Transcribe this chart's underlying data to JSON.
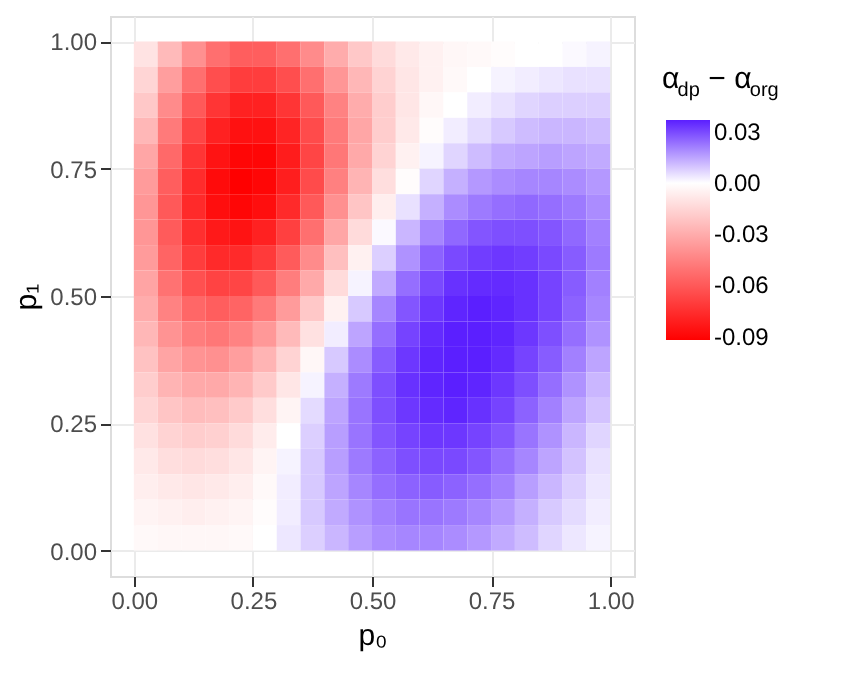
{
  "chart_data": {
    "type": "heatmap",
    "xlabel": "p₀",
    "ylabel": "p₁",
    "legend_title": "α$_{dp}$ − α$_{org}$",
    "x": [
      0.025,
      0.075,
      0.125,
      0.175,
      0.225,
      0.275,
      0.325,
      0.375,
      0.425,
      0.475,
      0.525,
      0.575,
      0.625,
      0.675,
      0.725,
      0.775,
      0.825,
      0.875,
      0.925,
      0.975
    ],
    "y": [
      0.975,
      0.925,
      0.875,
      0.825,
      0.775,
      0.725,
      0.675,
      0.625,
      0.575,
      0.525,
      0.475,
      0.425,
      0.375,
      0.325,
      0.275,
      0.225,
      0.175,
      0.125,
      0.075,
      0.025
    ],
    "cells": [
      [
        -0.01,
        -0.025,
        -0.04,
        -0.052,
        -0.058,
        -0.058,
        -0.052,
        -0.042,
        -0.03,
        -0.02,
        -0.013,
        -0.008,
        -0.005,
        -0.003,
        -0.002,
        -0.001,
        0.0,
        0.0,
        0.001,
        0.002
      ],
      [
        -0.015,
        -0.035,
        -0.052,
        -0.064,
        -0.07,
        -0.07,
        -0.064,
        -0.052,
        -0.038,
        -0.026,
        -0.016,
        -0.009,
        -0.005,
        -0.002,
        0.0,
        0.002,
        0.003,
        0.004,
        0.005,
        0.005
      ],
      [
        -0.02,
        -0.042,
        -0.06,
        -0.073,
        -0.08,
        -0.08,
        -0.073,
        -0.06,
        -0.045,
        -0.03,
        -0.018,
        -0.009,
        -0.003,
        0.0,
        0.003,
        0.005,
        0.007,
        0.008,
        0.008,
        0.008
      ],
      [
        -0.026,
        -0.048,
        -0.067,
        -0.08,
        -0.086,
        -0.086,
        -0.079,
        -0.065,
        -0.048,
        -0.032,
        -0.018,
        -0.008,
        -0.001,
        0.003,
        0.006,
        0.009,
        0.011,
        0.012,
        0.012,
        0.011
      ],
      [
        -0.032,
        -0.054,
        -0.073,
        -0.085,
        -0.09,
        -0.09,
        -0.082,
        -0.067,
        -0.049,
        -0.031,
        -0.016,
        -0.005,
        0.002,
        0.007,
        0.011,
        0.014,
        0.015,
        0.016,
        0.015,
        0.014
      ],
      [
        -0.036,
        -0.058,
        -0.076,
        -0.088,
        -0.092,
        -0.09,
        -0.081,
        -0.065,
        -0.046,
        -0.027,
        -0.012,
        -0.001,
        0.007,
        0.013,
        0.017,
        0.019,
        0.02,
        0.02,
        0.019,
        0.017
      ],
      [
        -0.038,
        -0.06,
        -0.077,
        -0.087,
        -0.09,
        -0.087,
        -0.077,
        -0.06,
        -0.04,
        -0.021,
        -0.006,
        0.005,
        0.013,
        0.019,
        0.022,
        0.024,
        0.025,
        0.024,
        0.022,
        0.019
      ],
      [
        -0.038,
        -0.059,
        -0.075,
        -0.083,
        -0.085,
        -0.08,
        -0.069,
        -0.052,
        -0.032,
        -0.013,
        0.001,
        0.012,
        0.02,
        0.025,
        0.028,
        0.029,
        0.029,
        0.028,
        0.025,
        0.021
      ],
      [
        -0.036,
        -0.056,
        -0.07,
        -0.077,
        -0.077,
        -0.071,
        -0.059,
        -0.042,
        -0.023,
        -0.005,
        0.008,
        0.018,
        0.026,
        0.03,
        0.032,
        0.033,
        0.032,
        0.03,
        0.027,
        0.022
      ],
      [
        -0.033,
        -0.051,
        -0.063,
        -0.068,
        -0.067,
        -0.06,
        -0.047,
        -0.031,
        -0.013,
        0.002,
        0.014,
        0.024,
        0.03,
        0.034,
        0.035,
        0.035,
        0.034,
        0.031,
        0.027,
        0.021
      ],
      [
        -0.03,
        -0.045,
        -0.055,
        -0.058,
        -0.056,
        -0.048,
        -0.036,
        -0.02,
        -0.005,
        0.009,
        0.02,
        0.028,
        0.033,
        0.036,
        0.037,
        0.036,
        0.034,
        0.031,
        0.026,
        0.02
      ],
      [
        -0.026,
        -0.039,
        -0.047,
        -0.049,
        -0.045,
        -0.037,
        -0.025,
        -0.011,
        0.003,
        0.015,
        0.024,
        0.031,
        0.035,
        0.037,
        0.037,
        0.036,
        0.033,
        0.029,
        0.024,
        0.018
      ],
      [
        -0.022,
        -0.033,
        -0.039,
        -0.04,
        -0.035,
        -0.027,
        -0.016,
        -0.003,
        0.009,
        0.019,
        0.027,
        0.033,
        0.036,
        0.037,
        0.037,
        0.035,
        0.031,
        0.027,
        0.021,
        0.015
      ],
      [
        -0.018,
        -0.027,
        -0.031,
        -0.031,
        -0.027,
        -0.019,
        -0.009,
        0.002,
        0.013,
        0.022,
        0.029,
        0.034,
        0.036,
        0.037,
        0.036,
        0.033,
        0.029,
        0.024,
        0.018,
        0.012
      ],
      [
        -0.015,
        -0.021,
        -0.024,
        -0.023,
        -0.019,
        -0.012,
        -0.004,
        0.006,
        0.015,
        0.023,
        0.029,
        0.033,
        0.035,
        0.036,
        0.034,
        0.031,
        0.026,
        0.021,
        0.015,
        0.01
      ],
      [
        -0.011,
        -0.016,
        -0.018,
        -0.017,
        -0.013,
        -0.007,
        0.0,
        0.008,
        0.016,
        0.023,
        0.028,
        0.031,
        0.033,
        0.033,
        0.031,
        0.028,
        0.023,
        0.018,
        0.012,
        0.007
      ],
      [
        -0.008,
        -0.012,
        -0.013,
        -0.012,
        -0.009,
        -0.004,
        0.002,
        0.009,
        0.016,
        0.022,
        0.026,
        0.029,
        0.03,
        0.03,
        0.028,
        0.024,
        0.02,
        0.015,
        0.01,
        0.005
      ],
      [
        -0.006,
        -0.008,
        -0.009,
        -0.008,
        -0.006,
        -0.002,
        0.003,
        0.009,
        0.015,
        0.02,
        0.024,
        0.026,
        0.027,
        0.026,
        0.024,
        0.021,
        0.016,
        0.012,
        0.008,
        0.004
      ],
      [
        -0.004,
        -0.005,
        -0.006,
        -0.005,
        -0.004,
        -0.001,
        0.003,
        0.009,
        0.014,
        0.018,
        0.021,
        0.023,
        0.023,
        0.022,
        0.02,
        0.017,
        0.013,
        0.009,
        0.006,
        0.003
      ],
      [
        -0.002,
        -0.003,
        -0.003,
        -0.003,
        -0.002,
        0.0,
        0.004,
        0.008,
        0.012,
        0.016,
        0.019,
        0.02,
        0.02,
        0.019,
        0.017,
        0.014,
        0.011,
        0.007,
        0.004,
        0.002
      ]
    ],
    "colors": [
      "#ff0000",
      "#ffffff",
      "#5b1fff"
    ],
    "clim": [
      -0.092,
      0.037
    ],
    "cticks": [
      -0.09,
      -0.06,
      -0.03,
      {
        "value": 0,
        "label": "0.00"
      },
      0.03
    ],
    "xlim": [
      -0.05,
      1.05
    ],
    "ylim": [
      -0.05,
      1.05
    ],
    "xticks": [
      {
        "value": 0,
        "label": "0.00"
      },
      0.25,
      {
        "value": 0.5,
        "label": "0.50"
      },
      0.75,
      {
        "value": 1,
        "label": "1.00"
      }
    ],
    "yticks": [
      {
        "value": 0,
        "label": "0.00"
      },
      0.25,
      {
        "value": 0.5,
        "label": "0.50"
      },
      0.75,
      {
        "value": 1,
        "label": "1.00"
      }
    ],
    "grid": true
  }
}
